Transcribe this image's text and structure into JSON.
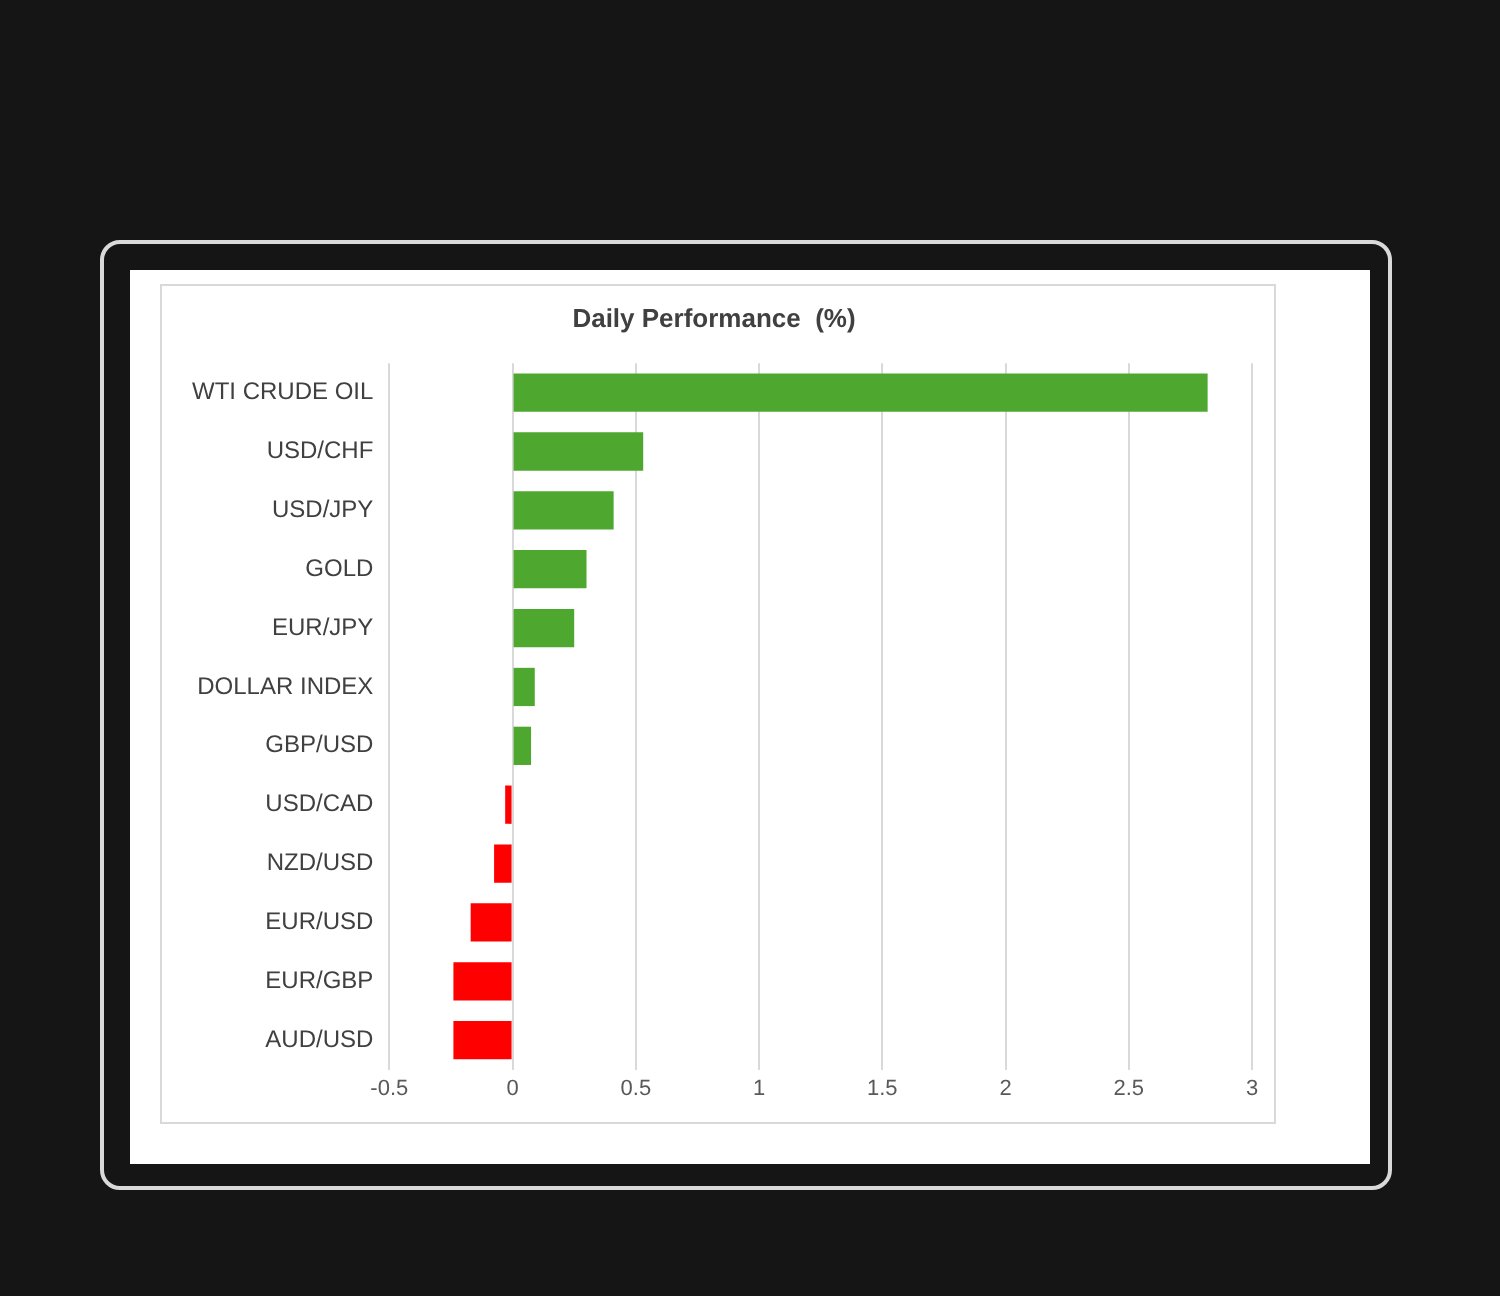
{
  "chart_data": {
    "type": "bar",
    "orientation": "horizontal",
    "title": "Daily Performance  (%)",
    "categories": [
      "WTI CRUDE OIL",
      "USD/CHF",
      "USD/JPY",
      "GOLD",
      "EUR/JPY",
      "DOLLAR INDEX",
      "GBP/USD",
      "USD/CAD",
      "NZD/USD",
      "EUR/USD",
      "EUR/GBP",
      "AUD/USD"
    ],
    "values": [
      2.82,
      0.53,
      0.41,
      0.3,
      0.25,
      0.09,
      0.075,
      -0.03,
      -0.075,
      -0.17,
      -0.24,
      -0.24
    ],
    "colors": [
      "#4ea72e",
      "#4ea72e",
      "#4ea72e",
      "#4ea72e",
      "#4ea72e",
      "#4ea72e",
      "#4ea72e",
      "#ff0000",
      "#ff0000",
      "#ff0000",
      "#ff0000",
      "#ff0000"
    ],
    "xlim": [
      -0.5,
      3
    ],
    "xticks": [
      -0.5,
      0,
      0.5,
      1,
      1.5,
      2,
      2.5,
      3
    ],
    "grid": "x",
    "legend": false
  }
}
